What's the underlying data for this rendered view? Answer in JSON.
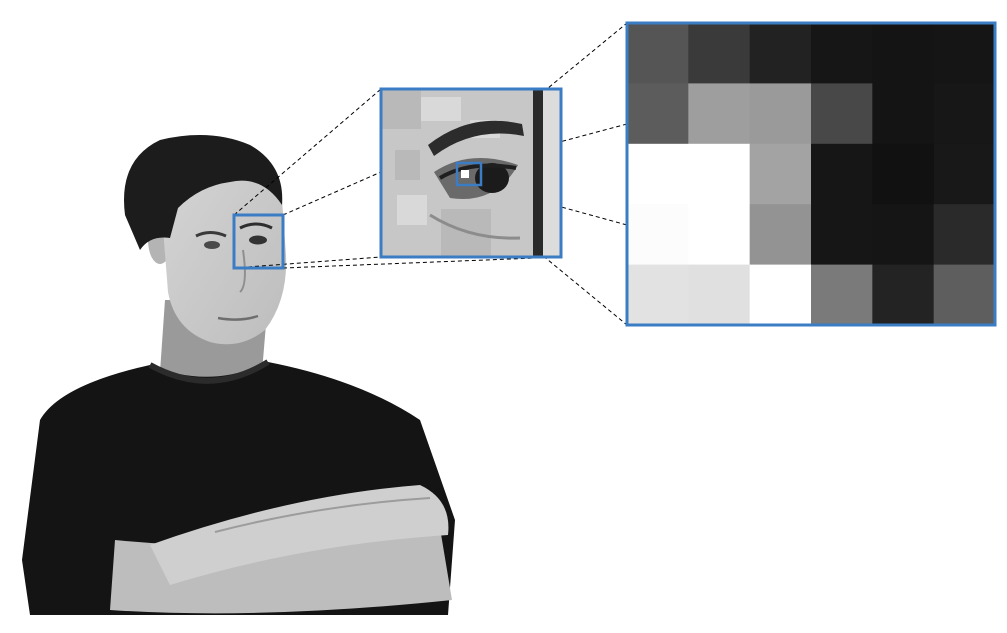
{
  "accent_color": "#3b7dc4",
  "connector_color": "#000000",
  "figure": {
    "portrait": {
      "subject": "person-with-crossed-arms",
      "tone": "grayscale"
    },
    "zoom_levels": [
      {
        "level": 1,
        "name": "eye-region-crop",
        "pixelation": "coarse"
      },
      {
        "level": 2,
        "name": "pixel-grid-crop",
        "rows": 5,
        "cols": 6
      }
    ],
    "pixel_grid": [
      [
        "#555555",
        "#3a3a3a",
        "#222222",
        "#161616",
        "#141414",
        "#151515"
      ],
      [
        "#5c5c5c",
        "#9e9e9e",
        "#9a9a9a",
        "#484848",
        "#141414",
        "#171717"
      ],
      [
        "#ffffff",
        "#ffffff",
        "#a3a3a3",
        "#161616",
        "#111111",
        "#181818"
      ],
      [
        "#fcfcfc",
        "#ffffff",
        "#939393",
        "#161616",
        "#151515",
        "#2a2a2a"
      ],
      [
        "#e2e2e2",
        "#e0e0e0",
        "#ffffff",
        "#7a7a7a",
        "#232323",
        "#5e5e5e"
      ]
    ]
  }
}
